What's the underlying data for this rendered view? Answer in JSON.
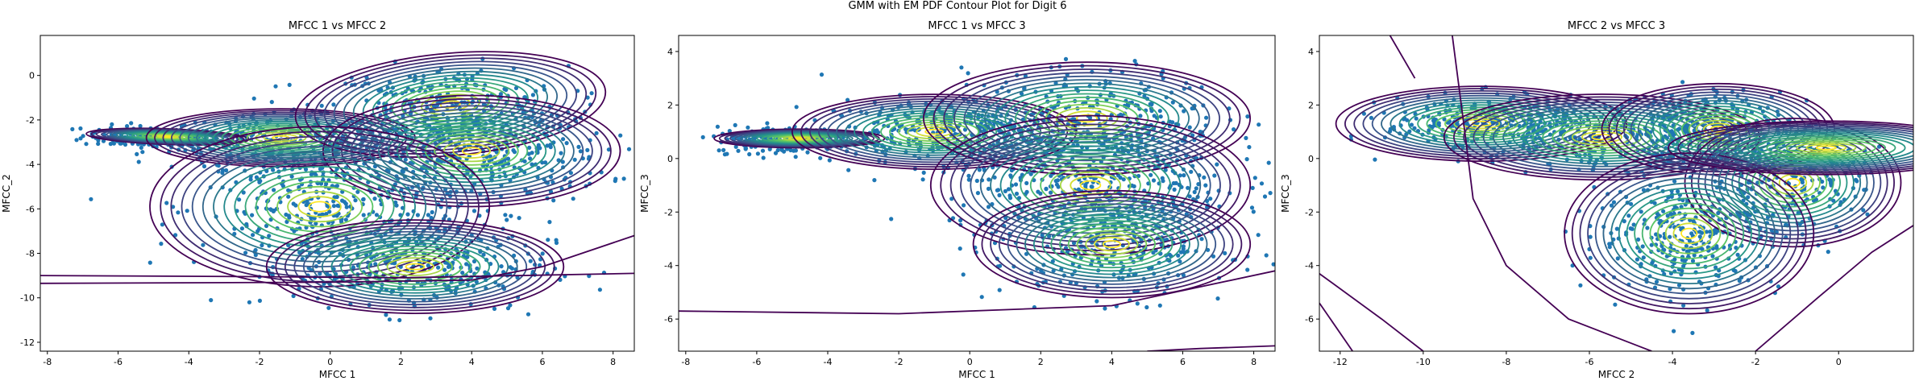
{
  "figure": {
    "suptitle": "GMM with EM PDF Contour Plot for Digit 6"
  },
  "colors": {
    "points": "#1f77b4",
    "contour_low": "#440154",
    "contour_mid1": "#3b528b",
    "contour_mid2": "#21918c",
    "contour_mid3": "#5ec962",
    "contour_high": "#fde725"
  },
  "chart_data": [
    {
      "type": "scatter",
      "title": "MFCC 1 vs MFCC 2",
      "xlabel": "MFCC 1",
      "ylabel": "MFCC_2",
      "xlim": [
        -8.2,
        8.6
      ],
      "ylim": [
        -12.4,
        1.8
      ],
      "xticks": [
        -8,
        -6,
        -4,
        -2,
        0,
        2,
        4,
        6,
        8
      ],
      "yticks": [
        -12,
        -10,
        -8,
        -6,
        -4,
        -2,
        0
      ],
      "clusters": [
        {
          "center": [
            -5.0,
            -2.8
          ],
          "spread": [
            1.0,
            0.25
          ],
          "tilt": -0.05,
          "count": 180
        },
        {
          "center": [
            -1.5,
            -3.0
          ],
          "spread": [
            1.5,
            0.6
          ],
          "tilt": 0.0,
          "count": 260
        },
        {
          "center": [
            3.3,
            -1.4
          ],
          "spread": [
            1.7,
            0.9
          ],
          "tilt": 0.0,
          "count": 300
        },
        {
          "center": [
            4.2,
            -3.7
          ],
          "spread": [
            1.8,
            1.0
          ],
          "tilt": 0.0,
          "count": 320
        },
        {
          "center": [
            0.0,
            -5.8
          ],
          "spread": [
            1.8,
            1.5
          ],
          "tilt": 0.0,
          "count": 380
        },
        {
          "center": [
            2.6,
            -8.6
          ],
          "spread": [
            1.8,
            1.0
          ],
          "tilt": 0.0,
          "count": 300
        }
      ],
      "gaussians": [
        {
          "center": [
            -4.6,
            -2.75
          ],
          "radii": [
            2.3,
            0.35
          ],
          "angle": -2
        },
        {
          "center": [
            -1.4,
            -2.8
          ],
          "radii": [
            3.8,
            1.3
          ],
          "angle": 0
        },
        {
          "center": [
            3.4,
            -1.3
          ],
          "radii": [
            4.4,
            2.3
          ],
          "angle": 5
        },
        {
          "center": [
            4.0,
            -3.4
          ],
          "radii": [
            4.2,
            2.5
          ],
          "angle": 0
        },
        {
          "center": [
            -0.3,
            -5.9
          ],
          "radii": [
            4.8,
            3.6
          ],
          "angle": 0
        },
        {
          "center": [
            2.4,
            -8.6
          ],
          "radii": [
            4.2,
            2.1
          ],
          "angle": 0
        }
      ],
      "bands": [
        {
          "points": [
            [
              -8.2,
              -9.0
            ],
            [
              -2.0,
              -9.05
            ],
            [
              2.0,
              -9.1
            ],
            [
              8.6,
              -8.9
            ]
          ]
        },
        {
          "points": [
            [
              -8.2,
              -9.35
            ],
            [
              0.0,
              -9.3
            ],
            [
              4.0,
              -9.2
            ],
            [
              6.0,
              -8.6
            ],
            [
              8.6,
              -7.2
            ]
          ]
        }
      ]
    },
    {
      "type": "scatter",
      "title": "MFCC 1 vs MFCC 3",
      "xlabel": "MFCC 1",
      "ylabel": "MFCC_3",
      "xlim": [
        -8.2,
        8.6
      ],
      "ylim": [
        -7.2,
        4.6
      ],
      "xticks": [
        -8,
        -6,
        -4,
        -2,
        0,
        2,
        4,
        6,
        8
      ],
      "yticks": [
        -6,
        -4,
        -2,
        0,
        2,
        4
      ],
      "clusters": [
        {
          "center": [
            -5.2,
            0.7
          ],
          "spread": [
            1.0,
            0.25
          ],
          "tilt": 0.0,
          "count": 200
        },
        {
          "center": [
            -1.0,
            1.0
          ],
          "spread": [
            1.6,
            0.6
          ],
          "tilt": 0.0,
          "count": 300
        },
        {
          "center": [
            3.5,
            1.5
          ],
          "spread": [
            1.8,
            0.9
          ],
          "tilt": 0.0,
          "count": 320
        },
        {
          "center": [
            3.5,
            -1.2
          ],
          "spread": [
            2.0,
            1.2
          ],
          "tilt": 0.0,
          "count": 380
        },
        {
          "center": [
            4.2,
            -3.2
          ],
          "spread": [
            1.6,
            1.0
          ],
          "tilt": 0.0,
          "count": 260
        }
      ],
      "gaussians": [
        {
          "center": [
            -4.8,
            0.75
          ],
          "radii": [
            2.4,
            0.35
          ],
          "angle": 0
        },
        {
          "center": [
            -1.0,
            1.0
          ],
          "radii": [
            4.0,
            1.4
          ],
          "angle": 0
        },
        {
          "center": [
            3.3,
            1.5
          ],
          "radii": [
            4.6,
            2.1
          ],
          "angle": 0
        },
        {
          "center": [
            3.4,
            -1.0
          ],
          "radii": [
            4.5,
            2.6
          ],
          "angle": 0
        },
        {
          "center": [
            4.0,
            -3.2
          ],
          "radii": [
            3.9,
            2.0
          ],
          "angle": 0
        }
      ],
      "bands": [
        {
          "points": [
            [
              -8.2,
              -5.7
            ],
            [
              -2.0,
              -5.8
            ],
            [
              4.0,
              -5.5
            ],
            [
              8.6,
              -4.2
            ]
          ]
        },
        {
          "points": [
            [
              5.0,
              -7.2
            ],
            [
              6.5,
              -7.1
            ],
            [
              8.6,
              -7.0
            ]
          ]
        }
      ]
    },
    {
      "type": "scatter",
      "title": "MFCC 2 vs MFCC 3",
      "xlabel": "MFCC 2",
      "ylabel": "MFCC_3",
      "xlim": [
        -12.5,
        1.8
      ],
      "ylim": [
        -7.2,
        4.6
      ],
      "xticks": [
        -12,
        -10,
        -8,
        -6,
        -4,
        -2,
        0
      ],
      "yticks": [
        -6,
        -4,
        -2,
        0,
        2,
        4
      ],
      "clusters": [
        {
          "center": [
            -8.7,
            1.3
          ],
          "spread": [
            1.1,
            0.5
          ],
          "tilt": 0.0,
          "count": 240
        },
        {
          "center": [
            -5.8,
            0.9
          ],
          "spread": [
            1.3,
            0.6
          ],
          "tilt": 0.0,
          "count": 280
        },
        {
          "center": [
            -3.0,
            1.2
          ],
          "spread": [
            0.9,
            0.7
          ],
          "tilt": 0.0,
          "count": 260
        },
        {
          "center": [
            -1.2,
            -0.9
          ],
          "spread": [
            0.9,
            1.0
          ],
          "tilt": 0.0,
          "count": 220
        },
        {
          "center": [
            -3.6,
            -2.8
          ],
          "spread": [
            1.1,
            1.1
          ],
          "tilt": 0.0,
          "count": 320
        }
      ],
      "gaussians": [
        {
          "center": [
            -8.6,
            1.3
          ],
          "radii": [
            3.5,
            1.4
          ],
          "angle": 0
        },
        {
          "center": [
            -5.7,
            0.8
          ],
          "radii": [
            3.8,
            1.6
          ],
          "angle": 0
        },
        {
          "center": [
            -2.9,
            1.1
          ],
          "radii": [
            2.8,
            1.7
          ],
          "angle": 0
        },
        {
          "center": [
            -1.1,
            -0.9
          ],
          "radii": [
            2.6,
            2.4
          ],
          "angle": 0
        },
        {
          "center": [
            -3.6,
            -2.8
          ],
          "radii": [
            3.0,
            3.0
          ],
          "angle": 0
        },
        {
          "center": [
            -0.3,
            0.4
          ],
          "radii": [
            3.8,
            1.0
          ],
          "angle": 0
        }
      ],
      "bands": [
        {
          "points": [
            [
              -12.5,
              -4.3
            ],
            [
              -11.0,
              -6.0
            ],
            [
              -10.0,
              -7.2
            ]
          ]
        },
        {
          "points": [
            [
              -12.5,
              -5.4
            ],
            [
              -11.7,
              -7.2
            ]
          ]
        },
        {
          "points": [
            [
              -9.3,
              4.6
            ],
            [
              -9.0,
              1.0
            ],
            [
              -8.8,
              -1.5
            ],
            [
              -8.0,
              -4.0
            ],
            [
              -6.5,
              -6.0
            ],
            [
              -4.5,
              -7.2
            ]
          ]
        },
        {
          "points": [
            [
              -2.0,
              -7.2
            ],
            [
              -0.5,
              -5.2
            ],
            [
              0.8,
              -3.5
            ],
            [
              1.8,
              -2.5
            ]
          ]
        },
        {
          "points": [
            [
              -10.8,
              4.6
            ],
            [
              -10.2,
              3.0
            ]
          ]
        }
      ]
    }
  ]
}
